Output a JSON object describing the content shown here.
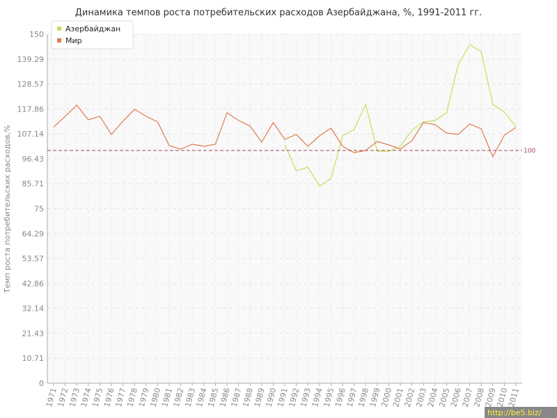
{
  "chart_data": {
    "type": "line",
    "title": "Динамика темпов роста потребительских расходов Азербайджана, %, 1991-2011 гг.",
    "y_label": "Темп роста потребительских расходов,%",
    "categories": [
      "1971",
      "1972",
      "1973",
      "1974",
      "1975",
      "1976",
      "1977",
      "1978",
      "1979",
      "1980",
      "1981",
      "1982",
      "1983",
      "1984",
      "1985",
      "1986",
      "1987",
      "1988",
      "1989",
      "1990",
      "1991",
      "1992",
      "1993",
      "1994",
      "1995",
      "1996",
      "1997",
      "1998",
      "1999",
      "2000",
      "2001",
      "2002",
      "2003",
      "2004",
      "2005",
      "2006",
      "2007",
      "2008",
      "2009",
      "2010",
      "2011"
    ],
    "series": [
      {
        "name": "Азербайджан",
        "color": "#c5df5a",
        "values": [
          null,
          null,
          null,
          null,
          null,
          null,
          null,
          null,
          null,
          null,
          null,
          null,
          null,
          null,
          null,
          null,
          null,
          null,
          null,
          null,
          102.4,
          91.3,
          92.8,
          84.7,
          88.0,
          106.3,
          109.0,
          119.8,
          99.7,
          99.7,
          101.8,
          108.7,
          112.3,
          112.9,
          116.2,
          136.8,
          145.5,
          142.5,
          119.8,
          116.5,
          110.2
        ]
      },
      {
        "name": "Мир",
        "color": "#e07b4f",
        "values": [
          110.0,
          114.7,
          119.5,
          113.2,
          114.7,
          106.9,
          112.6,
          117.7,
          114.7,
          112.3,
          102.1,
          100.6,
          102.7,
          101.8,
          102.7,
          116.2,
          112.9,
          110.5,
          103.6,
          112.0,
          104.8,
          106.9,
          101.8,
          106.3,
          109.6,
          101.8,
          99.1,
          100.0,
          103.9,
          102.4,
          100.6,
          104.2,
          112.0,
          111.1,
          107.5,
          106.9,
          111.4,
          109.3,
          97.3,
          106.6,
          109.9
        ]
      }
    ],
    "ylim": [
      0,
      150
    ],
    "yticks": [
      0,
      10.71,
      21.43,
      32.14,
      42.86,
      53.57,
      64.29,
      75,
      85.71,
      96.43,
      107.14,
      117.86,
      128.57,
      139.29,
      150
    ],
    "grid": true,
    "reference_line": 100,
    "reference_color": "#a8465a",
    "legend": "top-left",
    "watermark": "http://be5.biz/"
  }
}
